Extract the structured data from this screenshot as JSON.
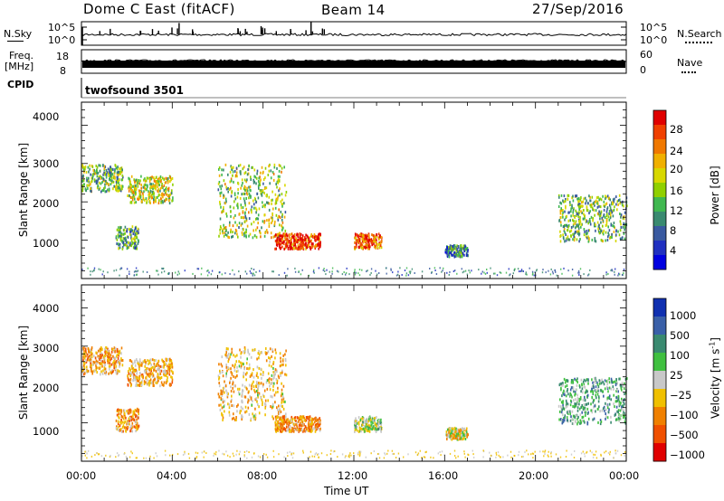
{
  "header": {
    "title": "Dome C East (fitACF)",
    "beam": "Beam 14",
    "date": "27/Sep/2016"
  },
  "noise_panel": {
    "left_label": "N.Sky",
    "right_label": "N.Search",
    "left_ticks": [
      "10^5",
      "10^0"
    ],
    "right_ticks": [
      "10^5",
      "10^0"
    ]
  },
  "freq_panel": {
    "left_label_line1": "Freq.",
    "left_label_line2": "[MHz]",
    "right_label": "Nave",
    "left_ticks": [
      "18",
      "8"
    ],
    "right_ticks": [
      "60",
      "0"
    ]
  },
  "cpid_panel": {
    "label": "CPID",
    "program": "twofsound 3501"
  },
  "power_panel": {
    "ylabel": "Slant Range [km]",
    "y_ticks": [
      "4000",
      "3000",
      "2000",
      "1000"
    ],
    "colorbar_label": "Power [dB]",
    "colorbar_ticks": [
      "28",
      "24",
      "20",
      "16",
      "12",
      "8",
      "4"
    ],
    "colorbar_colors": [
      "#e00000",
      "#f04000",
      "#f07800",
      "#f0b000",
      "#d8d800",
      "#90d000",
      "#40b850",
      "#3a8a70",
      "#3a5aa0",
      "#2030c0",
      "#0000e0"
    ]
  },
  "velocity_panel": {
    "ylabel": "Slant Range [km]",
    "y_ticks": [
      "4000",
      "3000",
      "2000",
      "1000"
    ],
    "colorbar_label": "Velocity [m s",
    "colorbar_label_sup": "-1",
    "colorbar_label_end": "]",
    "colorbar_ticks": [
      "1000",
      "500",
      "100",
      "25",
      "−25",
      "−100",
      "−500",
      "−1000"
    ],
    "colorbar_colors": [
      "#1030b0",
      "#3a60a8",
      "#3a8a70",
      "#40c040",
      "#c8c8c8",
      "#f0c000",
      "#f08000",
      "#f05000",
      "#e00000"
    ]
  },
  "x_axis": {
    "label": "Time UT",
    "ticks": [
      "00:00",
      "04:00",
      "08:00",
      "12:00",
      "16:00",
      "20:00",
      "00:00"
    ]
  },
  "chart_data": {
    "type": "heatmap",
    "title": "Dome C East (fitACF)",
    "xlabel": "Time UT",
    "ylabel": "Slant Range [km]",
    "x_range_hours": [
      0,
      24
    ],
    "y_range_km": [
      0,
      4600
    ],
    "power_range_db": [
      0,
      32
    ],
    "velocity_range_ms": [
      -1000,
      1000
    ],
    "echo_regions": [
      {
        "t_start": 0.0,
        "t_end": 1.8,
        "r_low": 2300,
        "r_high": 3000,
        "power_db": 14,
        "velocity_ms": -300
      },
      {
        "t_start": 1.5,
        "t_end": 2.5,
        "r_low": 800,
        "r_high": 1400,
        "power_db": 12,
        "velocity_ms": -400
      },
      {
        "t_start": 2.0,
        "t_end": 4.0,
        "r_low": 2000,
        "r_high": 2700,
        "power_db": 18,
        "velocity_ms": -300
      },
      {
        "t_start": 6.0,
        "t_end": 9.0,
        "r_low": 1100,
        "r_high": 3000,
        "power_db": 16,
        "velocity_ms": -200
      },
      {
        "t_start": 8.5,
        "t_end": 10.5,
        "r_low": 800,
        "r_high": 1200,
        "power_db": 28,
        "velocity_ms": -400
      },
      {
        "t_start": 12.0,
        "t_end": 13.2,
        "r_low": 800,
        "r_high": 1200,
        "power_db": 26,
        "velocity_ms": 50
      },
      {
        "t_start": 16.0,
        "t_end": 17.0,
        "r_low": 600,
        "r_high": 900,
        "power_db": 10,
        "velocity_ms": -100
      },
      {
        "t_start": 21.0,
        "t_end": 24.0,
        "r_low": 1000,
        "r_high": 2200,
        "power_db": 14,
        "velocity_ms": 300
      }
    ]
  }
}
